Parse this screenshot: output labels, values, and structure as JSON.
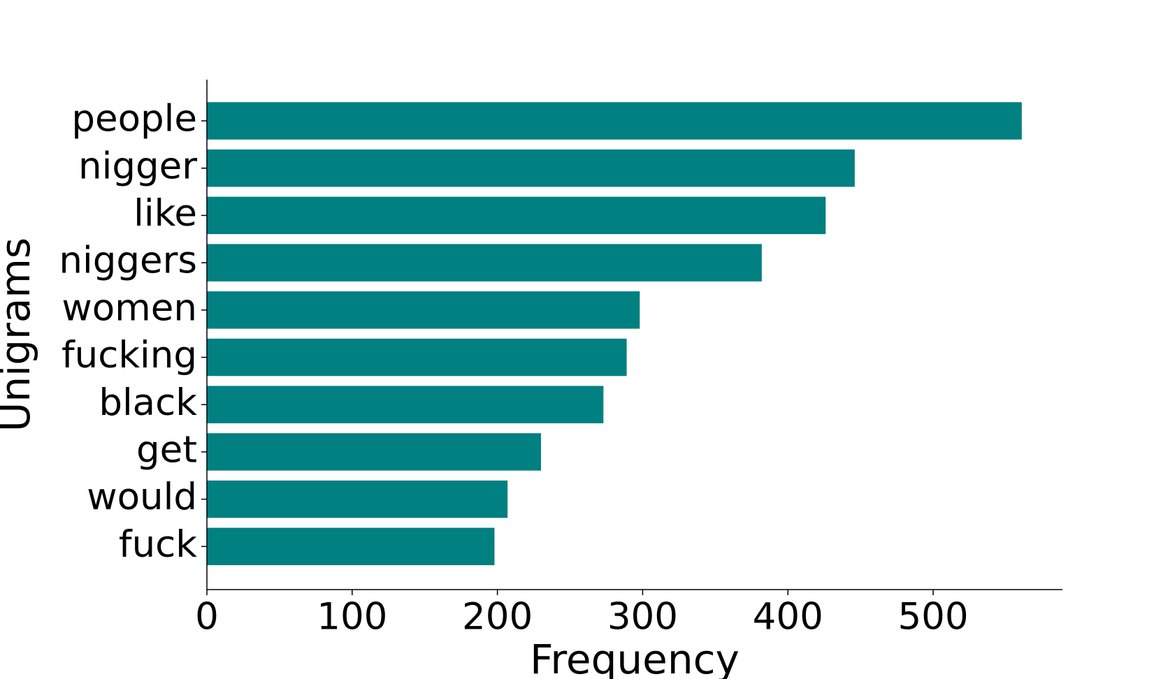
{
  "chart_data": {
    "type": "barh",
    "categories": [
      "people",
      "nigger",
      "like",
      "niggers",
      "women",
      "fucking",
      "black",
      "get",
      "would",
      "fuck"
    ],
    "values": [
      561,
      446,
      426,
      382,
      298,
      289,
      273,
      230,
      207,
      198
    ],
    "color": "#008080",
    "xlabel": "Frequency",
    "ylabel": "Unigrams",
    "xlim": [
      0,
      589
    ],
    "xticks": [
      0,
      100,
      200,
      300,
      400,
      500
    ],
    "grid": false
  }
}
